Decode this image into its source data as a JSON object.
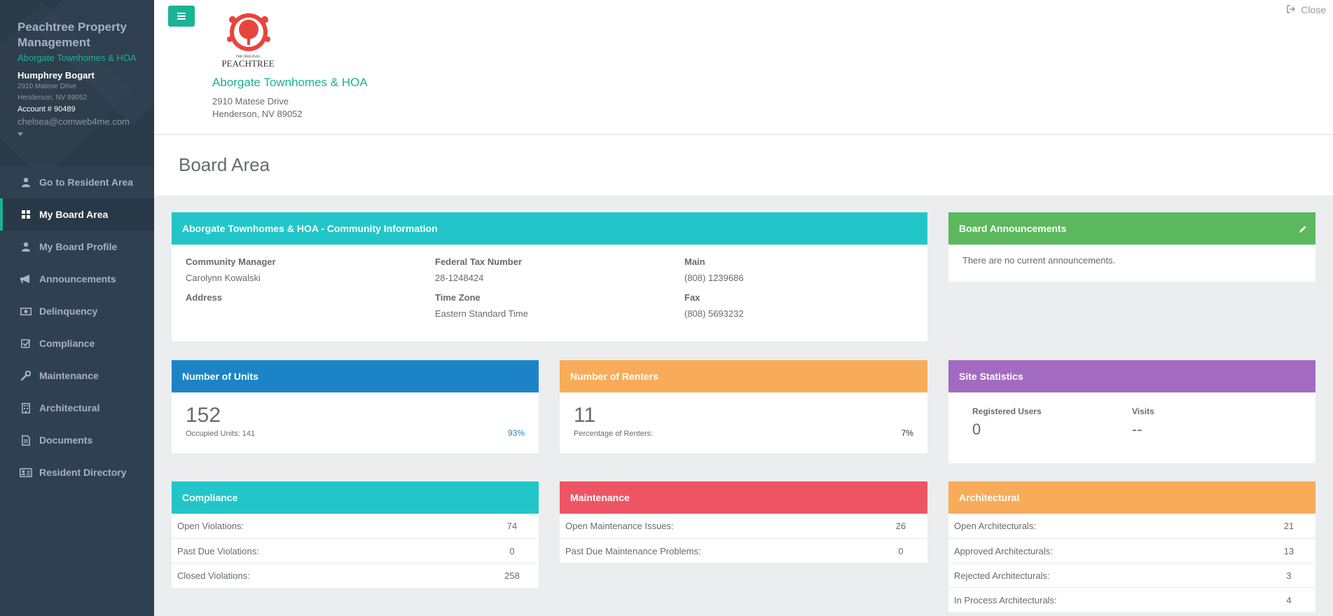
{
  "sidebar": {
    "company": "Peachtree Property Management",
    "hoa": "Aborgate Townhomes & HOA",
    "user": {
      "name": "Humphrey Bogart",
      "address1": "2910 Matese Drive",
      "address2": "Henderson, NV 89052",
      "account": "Account # 90489",
      "email": "chelsea@comweb4me.com"
    },
    "nav": [
      {
        "label": "Go to Resident Area",
        "icon": "user-icon"
      },
      {
        "label": "My Board Area",
        "icon": "grid-icon"
      },
      {
        "label": "My Board Profile",
        "icon": "user-icon"
      },
      {
        "label": "Announcements",
        "icon": "megaphone-icon"
      },
      {
        "label": "Delinquency",
        "icon": "money-icon"
      },
      {
        "label": "Compliance",
        "icon": "check-square-icon"
      },
      {
        "label": "Maintenance",
        "icon": "wrench-icon"
      },
      {
        "label": "Architectural",
        "icon": "building-icon"
      },
      {
        "label": "Documents",
        "icon": "document-icon"
      },
      {
        "label": "Resident Directory",
        "icon": "id-card-icon"
      }
    ]
  },
  "header": {
    "close_label": "Close",
    "logo_text": "PEACHTREE",
    "logo_small": "THE ORIGINAL",
    "hoa_title": "Aborgate Townhomes & HOA",
    "address1": "2910 Matese Drive",
    "address2": "Henderson, NV 89052"
  },
  "page": {
    "title": "Board Area"
  },
  "community": {
    "title": "Aborgate Townhomes & HOA - Community Information",
    "manager_label": "Community Manager",
    "manager": "Carolynn Kowalski",
    "tax_label": "Federal Tax Number",
    "tax": "28-1248424",
    "main_label": "Main",
    "main": "(808) 1239686",
    "address_label": "Address",
    "timezone_label": "Time Zone",
    "timezone": "Eastern Standard Time",
    "fax_label": "Fax",
    "fax": "(808) 5693232"
  },
  "announcements": {
    "title": "Board Announcements",
    "empty": "There are no current announcements."
  },
  "units": {
    "title": "Number of Units",
    "count": "152",
    "sub": "Occupied Units: 141",
    "pct": "93%"
  },
  "renters": {
    "title": "Number of Renters",
    "count": "11",
    "sub": "Percentage of Renters:",
    "pct": "7%"
  },
  "site": {
    "title": "Site Statistics",
    "users_label": "Registered Users",
    "users": "0",
    "visits_label": "Visits",
    "visits": "--"
  },
  "compliance": {
    "title": "Compliance",
    "rows": [
      {
        "label": "Open Violations:",
        "value": "74"
      },
      {
        "label": "Past Due Violations:",
        "value": "0"
      },
      {
        "label": "Closed Violations:",
        "value": "258"
      }
    ]
  },
  "maintenance": {
    "title": "Maintenance",
    "rows": [
      {
        "label": "Open Maintenance Issues:",
        "value": "26"
      },
      {
        "label": "Past Due Maintenance Problems:",
        "value": "0"
      }
    ]
  },
  "architectural": {
    "title": "Architectural",
    "rows": [
      {
        "label": "Open Architecturals:",
        "value": "21"
      },
      {
        "label": "Approved Architecturals:",
        "value": "13"
      },
      {
        "label": "Rejected Architecturals:",
        "value": "3"
      },
      {
        "label": "In Process Architecturals:",
        "value": "4"
      }
    ]
  },
  "colors": {
    "accent": "#1ab394",
    "sidebar": "#2f4050",
    "teal": "#23c6c8",
    "green": "#5cb85c",
    "blue": "#1c84c6",
    "orange": "#f8ac59",
    "purple": "#a36ac1",
    "red": "#ed5565"
  }
}
